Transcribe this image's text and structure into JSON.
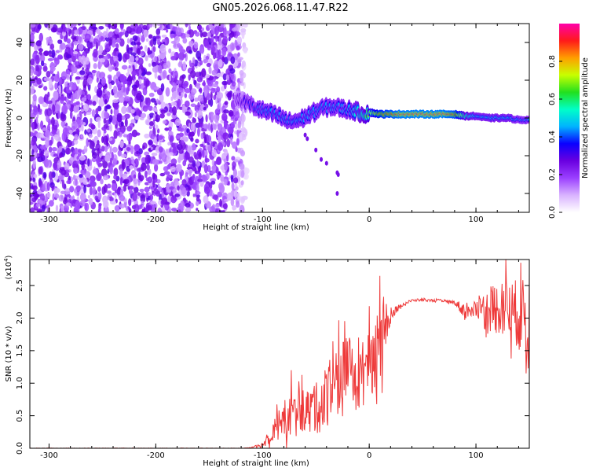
{
  "title": "GN05.2026.068.11.47.R22",
  "colors": {
    "background": "#ffffff",
    "axis": "#000000",
    "snr_line": "#ee3a3a",
    "colormap": [
      "#ffffff",
      "#d9b3ff",
      "#9b40ff",
      "#6a00e0",
      "#0a00ff",
      "#00b3ff",
      "#00ffc8",
      "#22e01e",
      "#c8ff00",
      "#ff9e00",
      "#ff1a1a",
      "#ff00aa"
    ]
  },
  "chart_data": [
    {
      "type": "heatmap",
      "name": "spectrogram",
      "xlabel": "Height of straight line (km)",
      "ylabel": "Frequency (Hz)",
      "xlim": [
        -318,
        150
      ],
      "ylim": [
        -50,
        50
      ],
      "xticks": [
        -300,
        -200,
        -100,
        0,
        100
      ],
      "xtick_labels": [
        "-300",
        "-200",
        "-100",
        "0",
        "100"
      ],
      "yticks": [
        -40,
        -20,
        0,
        20,
        40
      ],
      "ytick_labels": [
        "-40",
        "-20",
        "0",
        "20",
        "40"
      ],
      "noise_region_x": [
        -318,
        -120
      ],
      "signal_ridge": {
        "x": [
          -125,
          -115,
          -105,
          -95,
          -85,
          -75,
          -65,
          -55,
          -45,
          -35,
          -25,
          -15,
          -5,
          0,
          10,
          20,
          30,
          40,
          50,
          60,
          70,
          80,
          90,
          100,
          110,
          120,
          130,
          140,
          150
        ],
        "freq": [
          10,
          8,
          5,
          3,
          1,
          -2,
          -1,
          2,
          5,
          6,
          5,
          4,
          2,
          3,
          2,
          2,
          2,
          2,
          2,
          2,
          2,
          2,
          1,
          1,
          0,
          0,
          0,
          -1,
          -1
        ],
        "amplitude": [
          0.25,
          0.35,
          0.4,
          0.45,
          0.45,
          0.45,
          0.45,
          0.45,
          0.45,
          0.45,
          0.45,
          0.5,
          0.6,
          0.7,
          0.85,
          0.9,
          0.95,
          0.95,
          0.95,
          0.95,
          0.95,
          0.9,
          0.6,
          0.5,
          0.5,
          0.5,
          0.5,
          0.45,
          0.45
        ]
      },
      "scatter_points": [
        [
          -60,
          -9
        ],
        [
          -58,
          -11
        ],
        [
          -50,
          -17
        ],
        [
          -45,
          -22
        ],
        [
          -40,
          -24
        ],
        [
          -30,
          -29
        ],
        [
          -29,
          -30
        ],
        [
          -30,
          -40
        ]
      ]
    },
    {
      "type": "colorbar",
      "label": "Normalized spectral amplitude",
      "range": [
        0,
        1
      ],
      "ticks": [
        0.0,
        0.2,
        0.4,
        0.6,
        0.8
      ],
      "tick_labels": [
        "0.0",
        "0.2",
        "0.4",
        "0.6",
        "0.8"
      ]
    },
    {
      "type": "line",
      "name": "snr",
      "xlabel": "Height of straight line (km)",
      "ylabel": "SNR (10 * v/v)",
      "scale_note": "(x10",
      "scale_exp": "4",
      "scale_close": ")",
      "xlim": [
        -318,
        150
      ],
      "ylim": [
        0,
        2.9
      ],
      "xticks": [
        -300,
        -200,
        -100,
        0,
        100
      ],
      "xtick_labels": [
        "-300",
        "-200",
        "-100",
        "0",
        "100"
      ],
      "yticks": [
        0.0,
        0.5,
        1.0,
        1.5,
        2.0,
        2.5
      ],
      "ytick_labels": [
        "0.0",
        "0.5",
        "1.0",
        "1.5",
        "2.0",
        "2.5"
      ],
      "envelope": {
        "x": [
          -318,
          -120,
          -110,
          -100,
          -90,
          -80,
          -70,
          -60,
          -50,
          -40,
          -30,
          -20,
          -10,
          0,
          10,
          15,
          20,
          30,
          40,
          50,
          60,
          70,
          80,
          90,
          100,
          110,
          120,
          130,
          140,
          150
        ],
        "mean": [
          0.0,
          0.0,
          0.01,
          0.05,
          0.3,
          0.45,
          0.5,
          0.6,
          0.6,
          0.8,
          1.0,
          1.15,
          1.0,
          1.35,
          1.5,
          1.9,
          2.05,
          2.2,
          2.27,
          2.28,
          2.27,
          2.26,
          2.24,
          2.1,
          2.2,
          2.1,
          2.15,
          2.15,
          2.05,
          2.0
        ],
        "amplitude": [
          0.003,
          0.003,
          0.01,
          0.04,
          0.2,
          0.3,
          0.35,
          0.35,
          0.4,
          0.5,
          0.6,
          0.6,
          0.5,
          0.55,
          0.6,
          0.35,
          0.1,
          0.03,
          0.02,
          0.02,
          0.02,
          0.03,
          0.03,
          0.15,
          0.2,
          0.3,
          0.4,
          0.45,
          0.55,
          0.6
        ]
      },
      "spikes": [
        [
          -73,
          1.2
        ],
        [
          -38,
          1.25
        ],
        [
          -18,
          1.65
        ],
        [
          -10,
          1.7
        ],
        [
          10,
          2.65
        ],
        [
          12,
          0.85
        ],
        [
          128,
          2.9
        ],
        [
          142,
          2.85
        ],
        [
          147,
          1.15
        ]
      ]
    }
  ]
}
